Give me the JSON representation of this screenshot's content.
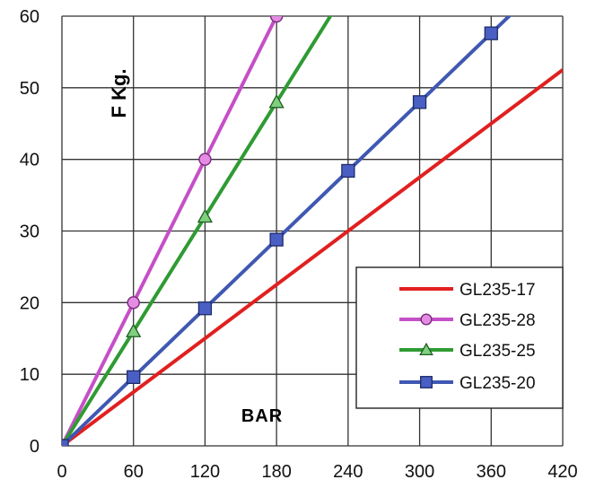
{
  "chart_data": {
    "type": "line",
    "title": "",
    "xlabel": "BAR",
    "ylabel": "F Kg.",
    "xlim": [
      0,
      420
    ],
    "ylim": [
      0,
      60
    ],
    "x_ticks": [
      0,
      60,
      120,
      180,
      240,
      300,
      360,
      420
    ],
    "y_ticks": [
      0,
      10,
      20,
      30,
      40,
      50,
      60
    ],
    "grid": true,
    "legend_position": "right",
    "series": [
      {
        "name": "GL235-17",
        "color": "#e0201f",
        "marker": "none",
        "x": [
          0,
          420
        ],
        "y": [
          0,
          52.5
        ]
      },
      {
        "name": "GL235-28",
        "color": "#c54fc6",
        "marker": "circle",
        "x": [
          0,
          60,
          120,
          180
        ],
        "y": [
          0,
          20,
          40,
          60
        ]
      },
      {
        "name": "GL235-25",
        "color": "#2f9b33",
        "marker": "triangle",
        "x": [
          0,
          60,
          120,
          180,
          230
        ],
        "y": [
          0,
          16,
          32,
          48,
          61.3
        ]
      },
      {
        "name": "GL235-20",
        "color": "#3f58b2",
        "marker": "square",
        "x": [
          0,
          60,
          120,
          180,
          240,
          300,
          360,
          380
        ],
        "y": [
          0,
          9.6,
          19.2,
          28.8,
          38.4,
          48,
          57.6,
          60.8
        ]
      }
    ]
  }
}
